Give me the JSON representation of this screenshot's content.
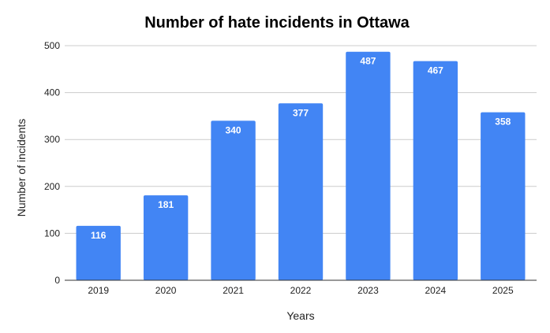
{
  "chart_data": {
    "type": "bar",
    "title": "Number of hate incidents in Ottawa",
    "xlabel": "Years",
    "ylabel": "Number of incidents",
    "categories": [
      "2019",
      "2020",
      "2021",
      "2022",
      "2023",
      "2024",
      "2025"
    ],
    "values": [
      116,
      181,
      340,
      377,
      487,
      467,
      358
    ],
    "data_labels": [
      "116",
      "181",
      "340",
      "377",
      "487",
      "467",
      "358"
    ],
    "ylim": [
      0,
      500
    ],
    "yticks": [
      "0",
      "100",
      "200",
      "300",
      "400",
      "500"
    ],
    "grid": true,
    "legend": "none",
    "bar_color": "#4285f4"
  }
}
